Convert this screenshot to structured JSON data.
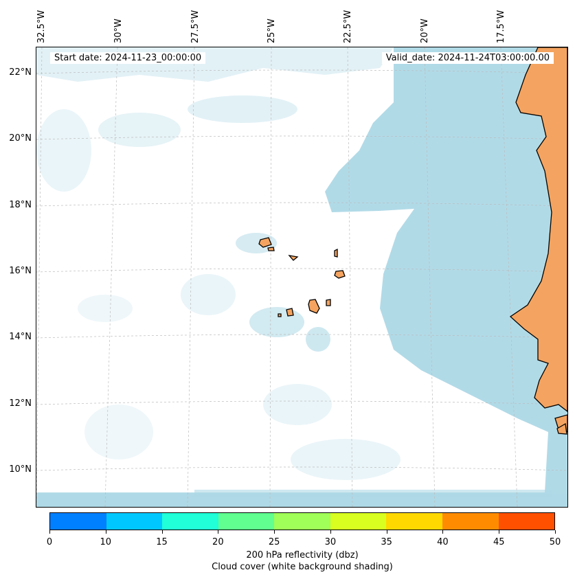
{
  "map": {
    "lon_labels": [
      "32.5°W",
      "30°W",
      "27.5°W",
      "25°W",
      "22.5°W",
      "20°W",
      "17.5°W"
    ],
    "lat_labels": [
      "22°N",
      "20°N",
      "18°N",
      "16°N",
      "14°N",
      "12°N",
      "10°N"
    ],
    "start_date": "Start date: 2024-11-23_00:00:00",
    "valid_date": "Valid_date: 2024-11-24T03:00:00.00",
    "colors": {
      "cloud": "#add8e6",
      "land": "#f4a460",
      "coast": "#000000"
    }
  },
  "colorbar": {
    "ticks": [
      "0",
      "10",
      "15",
      "20",
      "25",
      "30",
      "35",
      "40",
      "45",
      "50"
    ],
    "colors": [
      "#0080ff",
      "#00c8ff",
      "#20ffd8",
      "#60ff90",
      "#a0ff58",
      "#d8ff20",
      "#ffd800",
      "#ff8c00",
      "#ff5000"
    ],
    "label": "200 hPa reflectivity (dbz)",
    "sublabel": "Cloud cover (white background shading)"
  }
}
